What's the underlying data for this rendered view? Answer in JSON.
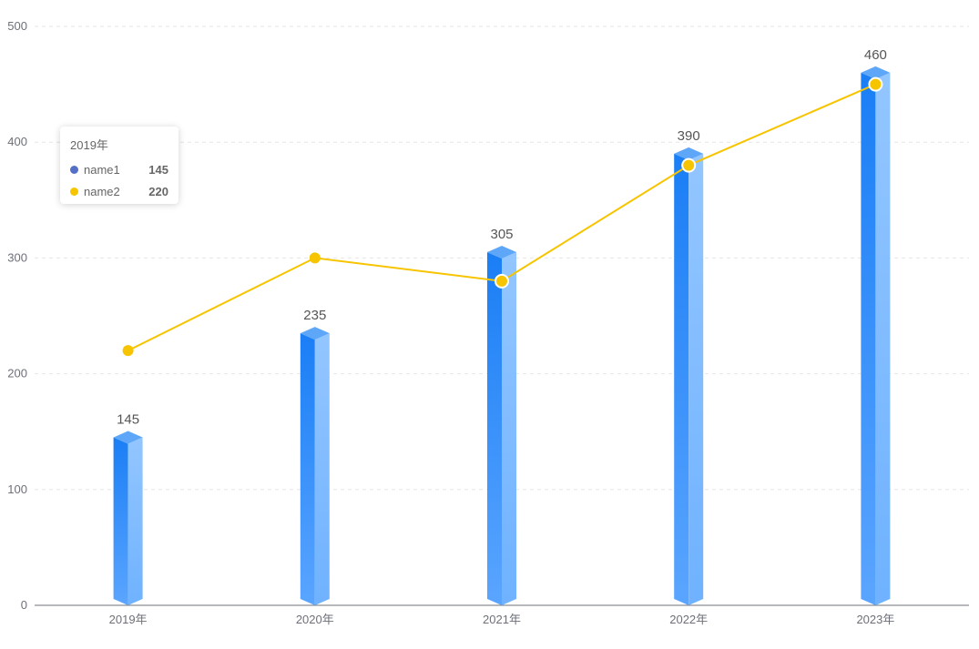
{
  "chart_data": {
    "type": "bar",
    "categories": [
      "2019年",
      "2020年",
      "2021年",
      "2022年",
      "2023年"
    ],
    "series": [
      {
        "name": "name1",
        "type": "bar",
        "values": [
          145,
          235,
          305,
          390,
          460
        ]
      },
      {
        "name": "name2",
        "type": "line",
        "values": [
          220,
          300,
          280,
          380,
          450
        ]
      }
    ],
    "ylim": [
      0,
      500
    ],
    "yticks": [
      0,
      100,
      200,
      300,
      400,
      500
    ],
    "grid": true,
    "colors": {
      "bar_front_dark": "#1a7ef5",
      "bar_front_light": "#5aa5ff",
      "bar_side": "#8cc3ff",
      "bar_top": "#5ea7f8",
      "line": "#f7c400",
      "series1_marker": "#5470c6"
    }
  },
  "tooltip": {
    "title": "2019年",
    "rows": [
      {
        "name": "name1",
        "value": "145"
      },
      {
        "name": "name2",
        "value": "220"
      }
    ]
  }
}
